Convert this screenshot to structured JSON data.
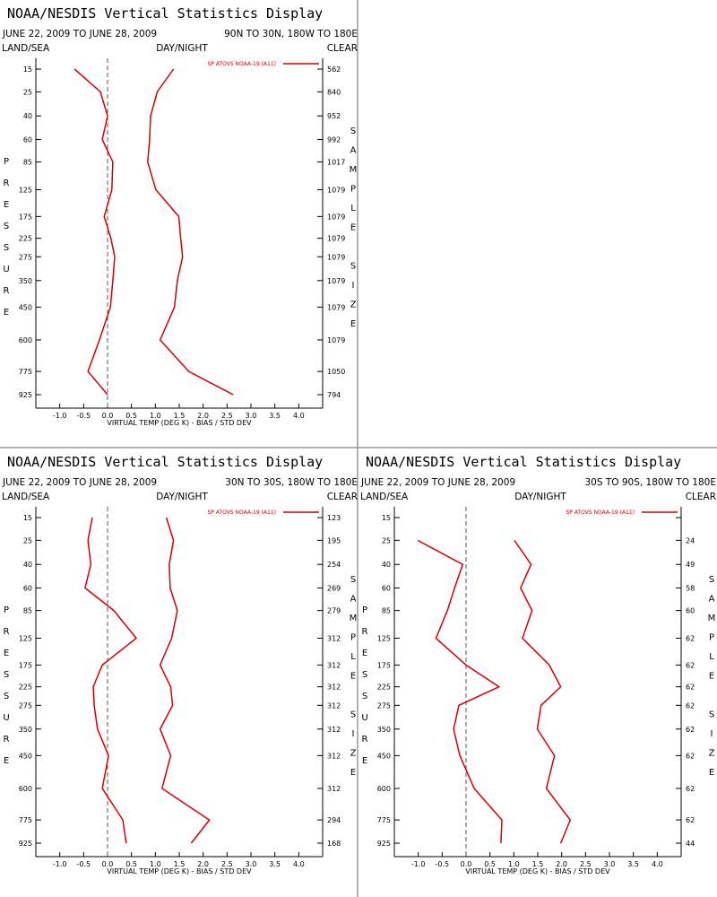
{
  "chart_data": [
    {
      "type": "line",
      "title": "NOAA/NESDIS Vertical Statistics Display",
      "subtitle": "JUNE 22, 2009 TO JUNE 28, 2009",
      "region": "90N TO 30N, 180W TO 180E",
      "land_sea": "LAND/SEA",
      "day_night": "DAY/NIGHT",
      "clear": "CLEAR",
      "ylabel": "PRESSURE",
      "y2label": "SAMPLE SIZE",
      "xlabel": "VIRTUAL TEMP (DEG K) - BIAS / STD DEV",
      "y": [
        15,
        25,
        40,
        60,
        85,
        125,
        175,
        225,
        275,
        350,
        450,
        600,
        775,
        925
      ],
      "ylim": [
        15,
        925
      ],
      "yticks": [
        15,
        25,
        40,
        60,
        85,
        125,
        175,
        225,
        275,
        350,
        450,
        600,
        775,
        925
      ],
      "xlim": [
        -1.5,
        4.5
      ],
      "xticks": [
        {
          "value": -1,
          "label": "-1.0"
        },
        -0.5,
        {
          "value": 0,
          "label": "0.0"
        },
        0.5,
        {
          "value": 1,
          "label": "1.0"
        },
        1.5,
        {
          "value": 2,
          "label": "2.0"
        },
        2.5,
        {
          "value": 3,
          "label": "3.0"
        },
        3.5,
        {
          "value": 4,
          "label": "4.0"
        }
      ],
      "series": [
        {
          "name": "SP ATOVS NOAA-19 (A11)",
          "color": "#d40000",
          "values": [
            -0.69,
            -0.15,
            0.0,
            -0.11,
            0.11,
            0.09,
            -0.07,
            0.07,
            0.15,
            0.11,
            0.06,
            -0.17,
            -0.41,
            0.0
          ],
          "std_dev": [
            1.38,
            1.04,
            0.9,
            0.88,
            0.84,
            1.01,
            1.49,
            1.53,
            1.57,
            1.46,
            1.4,
            1.1,
            1.7,
            2.63
          ]
        }
      ],
      "sample_size": [
        562,
        840,
        952,
        992,
        1017,
        1079,
        1079,
        1079,
        1079,
        1079,
        1079,
        1079,
        1050,
        794
      ]
    },
    {
      "type": "line",
      "title": "NOAA/NESDIS Vertical Statistics Display",
      "subtitle": "JUNE 22, 2009 TO JUNE 28, 2009",
      "region": "30N TO 30S, 180W TO 180E",
      "land_sea": "LAND/SEA",
      "day_night": "DAY/NIGHT",
      "clear": "CLEAR",
      "ylabel": "PRESSURE",
      "y2label": "SAMPLE SIZE",
      "xlabel": "VIRTUAL TEMP (DEG K) - BIAS / STD DEV",
      "y": [
        15,
        25,
        40,
        60,
        85,
        125,
        175,
        225,
        275,
        350,
        450,
        600,
        775,
        925
      ],
      "ylim": [
        15,
        925
      ],
      "yticks": [
        15,
        25,
        40,
        60,
        85,
        125,
        175,
        225,
        275,
        350,
        450,
        600,
        775,
        925
      ],
      "xlim": [
        -1.5,
        4.5
      ],
      "xticks": [
        {
          "value": -1,
          "label": "-1.0"
        },
        -0.5,
        {
          "value": 0,
          "label": "0.0"
        },
        0.5,
        {
          "value": 1,
          "label": "1.0"
        },
        1.5,
        {
          "value": 2,
          "label": "2.0"
        },
        2.5,
        {
          "value": 3,
          "label": "3.0"
        },
        3.5,
        {
          "value": 4,
          "label": "4.0"
        }
      ],
      "series": [
        {
          "name": "SP ATOVS NOAA-19 (A11)",
          "color": "#d40000",
          "values": [
            -0.32,
            -0.41,
            -0.35,
            -0.47,
            0.13,
            0.6,
            -0.11,
            -0.3,
            -0.28,
            -0.21,
            0.02,
            -0.11,
            0.32,
            0.39
          ],
          "std_dev": [
            1.23,
            1.38,
            1.29,
            1.31,
            1.46,
            1.34,
            1.1,
            1.32,
            1.36,
            1.1,
            1.32,
            1.14,
            2.13,
            1.75
          ]
        }
      ],
      "sample_size": [
        123,
        195,
        254,
        269,
        279,
        312,
        312,
        312,
        312,
        312,
        312,
        312,
        294,
        168
      ]
    },
    {
      "type": "line",
      "title": "NOAA/NESDIS Vertical Statistics Display",
      "subtitle": "JUNE 22, 2009 TO JUNE 28, 2009",
      "region": "30S TO 90S, 180W TO 180E",
      "land_sea": "LAND/SEA",
      "day_night": "DAY/NIGHT",
      "clear": "CLEAR",
      "ylabel": "PRESSURE",
      "y2label": "SAMPLE SIZE",
      "xlabel": "VIRTUAL TEMP (DEG K) - BIAS / STD DEV",
      "y": [
        15,
        25,
        40,
        60,
        85,
        125,
        175,
        225,
        275,
        350,
        450,
        600,
        775,
        925
      ],
      "ylim": [
        15,
        925
      ],
      "yticks": [
        15,
        25,
        40,
        60,
        85,
        125,
        175,
        225,
        275,
        350,
        450,
        600,
        775,
        925
      ],
      "xlim": [
        -1.5,
        4.5
      ],
      "xticks": [
        {
          "value": -1,
          "label": "-1.0"
        },
        -0.5,
        {
          "value": 0,
          "label": "0.0"
        },
        0.5,
        {
          "value": 1,
          "label": "1.0"
        },
        1.5,
        {
          "value": 2,
          "label": "2.0"
        },
        2.5,
        {
          "value": 3,
          "label": "3.0"
        },
        3.5,
        {
          "value": 4,
          "label": "4.0"
        }
      ],
      "series": [
        {
          "name": "SP ATOVS NOAA-19 (A11)",
          "color": "#d40000",
          "values": [
            null,
            -1.01,
            -0.07,
            -0.24,
            -0.39,
            -0.63,
            0.0,
            0.69,
            -0.15,
            -0.26,
            -0.13,
            0.17,
            0.75,
            0.73
          ],
          "std_dev": [
            null,
            1.01,
            1.36,
            1.14,
            1.38,
            1.18,
            1.74,
            1.98,
            1.57,
            1.49,
            1.85,
            1.68,
            2.18,
            1.98
          ]
        }
      ],
      "sample_size": [
        null,
        24,
        49,
        58,
        60,
        62,
        62,
        62,
        62,
        62,
        62,
        62,
        62,
        44
      ]
    }
  ]
}
